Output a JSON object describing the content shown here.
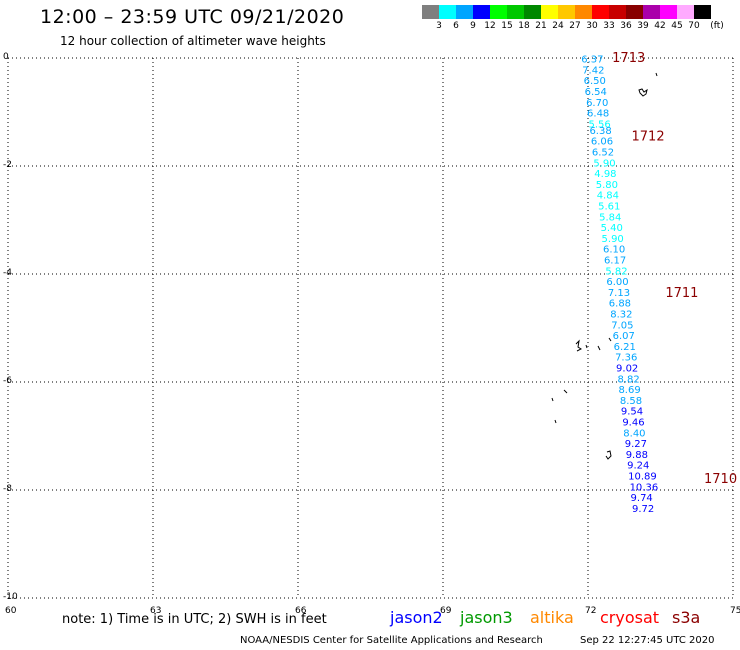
{
  "header": {
    "title": "12:00 – 23:59 UTC 09/21/2020",
    "subtitle": "12 hour collection of altimeter wave heights"
  },
  "colorbar": {
    "colors": [
      "#7f7f7f",
      "#00ffff",
      "#00a5ff",
      "#0000ff",
      "#00ff00",
      "#00c800",
      "#008800",
      "#ffff00",
      "#ffc800",
      "#ff8800",
      "#ff0000",
      "#c80000",
      "#880000",
      "#aa00aa",
      "#ff00ff",
      "#ffaaff",
      "#000000"
    ],
    "labels": [
      "3",
      "6",
      "9",
      "12",
      "15",
      "18",
      "21",
      "24",
      "27",
      "30",
      "33",
      "36",
      "39",
      "42",
      "45",
      "70",
      "(ft)"
    ]
  },
  "axes": {
    "x_ticks": [
      "60",
      "63",
      "66",
      "69",
      "72",
      "75"
    ],
    "y_ticks": [
      "0",
      "-2",
      "-4",
      "-6",
      "-8",
      "-10"
    ]
  },
  "track": {
    "points": [
      {
        "lon": 71.86,
        "lat": -0.03,
        "swh": "6.37",
        "sat": "jason2"
      },
      {
        "lon": 71.88,
        "lat": -0.23,
        "swh": "7.42",
        "sat": "jason2"
      },
      {
        "lon": 71.91,
        "lat": -0.43,
        "swh": "6.50",
        "sat": "jason2"
      },
      {
        "lon": 71.93,
        "lat": -0.63,
        "swh": "6.54",
        "sat": "jason2"
      },
      {
        "lon": 71.96,
        "lat": -0.83,
        "swh": "6.70",
        "sat": "jason2"
      },
      {
        "lon": 71.98,
        "lat": -1.03,
        "swh": "6.48",
        "sat": "jason2"
      },
      {
        "lon": 72.01,
        "lat": -1.23,
        "swh": "5.56",
        "sat": "jason2"
      },
      {
        "lon": 72.03,
        "lat": -1.35,
        "swh": "6.38",
        "sat": "jason2"
      },
      {
        "lon": 72.06,
        "lat": -1.55,
        "swh": "6.06",
        "sat": "jason2"
      },
      {
        "lon": 72.08,
        "lat": -1.75,
        "swh": "6.52",
        "sat": "jason2"
      },
      {
        "lon": 72.11,
        "lat": -1.95,
        "swh": "5.90",
        "sat": "jason2"
      },
      {
        "lon": 72.13,
        "lat": -2.15,
        "swh": "4.98",
        "sat": "jason2"
      },
      {
        "lon": 72.16,
        "lat": -2.35,
        "swh": "5.80",
        "sat": "jason2"
      },
      {
        "lon": 72.18,
        "lat": -2.55,
        "swh": "4.84",
        "sat": "jason2"
      },
      {
        "lon": 72.21,
        "lat": -2.75,
        "swh": "5.61",
        "sat": "jason2"
      },
      {
        "lon": 72.23,
        "lat": -2.95,
        "swh": "5.84",
        "sat": "jason2"
      },
      {
        "lon": 72.26,
        "lat": -3.15,
        "swh": "5.40",
        "sat": "jason2"
      },
      {
        "lon": 72.28,
        "lat": -3.35,
        "swh": "5.90",
        "sat": "jason2"
      },
      {
        "lon": 72.31,
        "lat": -3.55,
        "swh": "6.10",
        "sat": "jason2"
      },
      {
        "lon": 72.33,
        "lat": -3.75,
        "swh": "6.17",
        "sat": "jason2"
      },
      {
        "lon": 72.36,
        "lat": -3.95,
        "swh": "5.82",
        "sat": "jason2"
      },
      {
        "lon": 72.38,
        "lat": -4.15,
        "swh": "6.00",
        "sat": "jason2"
      },
      {
        "lon": 72.41,
        "lat": -4.35,
        "swh": "7.13",
        "sat": "jason2"
      },
      {
        "lon": 72.43,
        "lat": -4.55,
        "swh": "6.88",
        "sat": "jason2"
      },
      {
        "lon": 72.46,
        "lat": -4.75,
        "swh": "8.32",
        "sat": "jason2"
      },
      {
        "lon": 72.48,
        "lat": -4.95,
        "swh": "7.05",
        "sat": "jason2"
      },
      {
        "lon": 72.51,
        "lat": -5.15,
        "swh": "6.07",
        "sat": "jason2"
      },
      {
        "lon": 72.53,
        "lat": -5.35,
        "swh": "6.21",
        "sat": "jason2"
      },
      {
        "lon": 72.56,
        "lat": -5.55,
        "swh": "7.36",
        "sat": "jason2"
      },
      {
        "lon": 72.58,
        "lat": -5.75,
        "swh": "9.02",
        "sat": "jason2"
      },
      {
        "lon": 72.61,
        "lat": -5.95,
        "swh": "8.82",
        "sat": "jason2"
      },
      {
        "lon": 72.63,
        "lat": -6.15,
        "swh": "8.69",
        "sat": "jason2"
      },
      {
        "lon": 72.66,
        "lat": -6.35,
        "swh": "8.58",
        "sat": "jason2"
      },
      {
        "lon": 72.68,
        "lat": -6.55,
        "swh": "9.54",
        "sat": "jason2"
      },
      {
        "lon": 72.71,
        "lat": -6.75,
        "swh": "9.46",
        "sat": "jason2"
      },
      {
        "lon": 72.73,
        "lat": -6.95,
        "swh": "8.40",
        "sat": "jason2"
      },
      {
        "lon": 72.76,
        "lat": -7.15,
        "swh": "9.27",
        "sat": "jason2"
      },
      {
        "lon": 72.78,
        "lat": -7.35,
        "swh": "9.88",
        "sat": "jason2"
      },
      {
        "lon": 72.81,
        "lat": -7.55,
        "swh": "9.24",
        "sat": "jason2"
      },
      {
        "lon": 72.83,
        "lat": -7.75,
        "swh": "10.89",
        "sat": "jason2"
      },
      {
        "lon": 72.86,
        "lat": -7.95,
        "swh": "10.36",
        "sat": "jason2"
      },
      {
        "lon": 72.88,
        "lat": -8.15,
        "swh": "9.74",
        "sat": "jason2"
      },
      {
        "lon": 72.91,
        "lat": -8.35,
        "swh": "9.72",
        "sat": "jason2"
      }
    ],
    "time_labels": [
      {
        "text": "1713",
        "lon": 72.5,
        "lat": 0.0
      },
      {
        "text": "1712",
        "lon": 72.9,
        "lat": -1.45
      },
      {
        "text": "1711",
        "lon": 73.6,
        "lat": -4.35
      },
      {
        "text": "1710",
        "lon": 74.4,
        "lat": -7.8
      }
    ],
    "time_label_color": "#8b0000"
  },
  "footer": {
    "note": "note:  1) Time is in UTC;  2) SWH is in feet",
    "satellites": [
      {
        "name": "jason2",
        "color": "#0000ff"
      },
      {
        "name": "jason3",
        "color": "#009900"
      },
      {
        "name": "altika",
        "color": "#ff8800"
      },
      {
        "name": "cryosat",
        "color": "#ff0000"
      },
      {
        "name": "s3a",
        "color": "#8b0000"
      }
    ],
    "credit": "NOAA/NESDIS Center for Satellite Applications and Research",
    "timestamp": "Sep 22 12:27:45 UTC 2020"
  }
}
